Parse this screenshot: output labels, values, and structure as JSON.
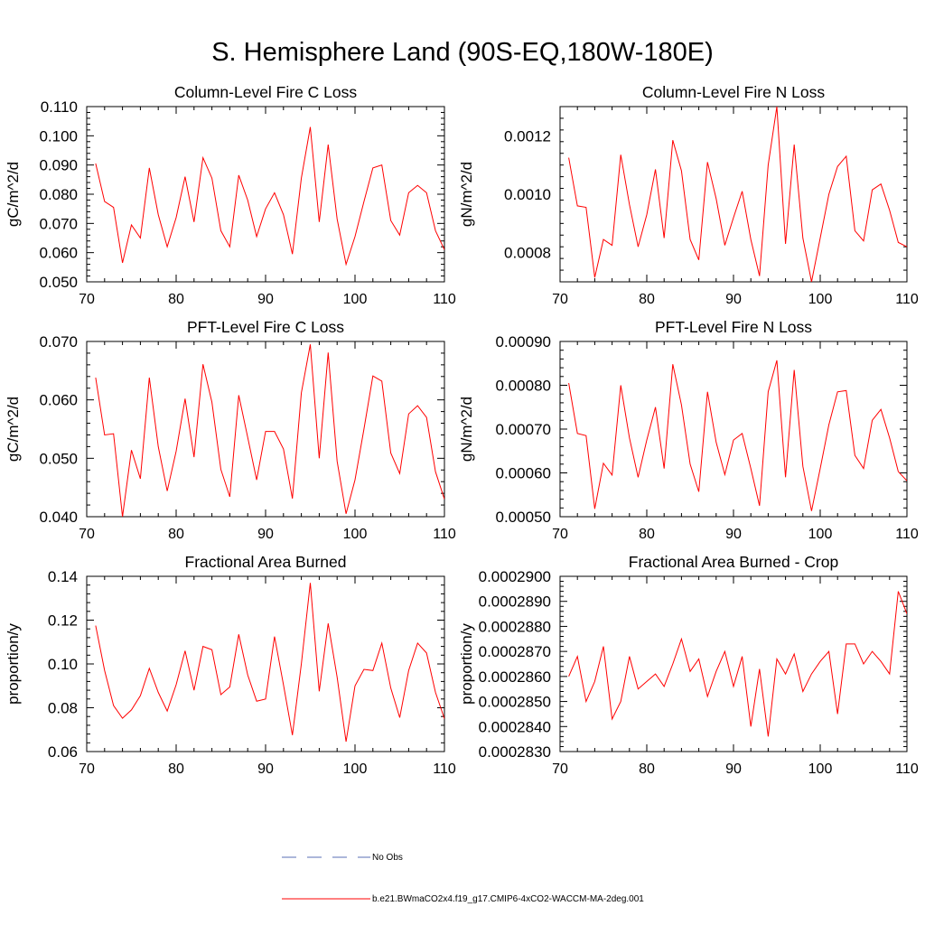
{
  "page_title": "S. Hemisphere Land (90S-EQ,180W-180E)",
  "legend": [
    {
      "label": "No Obs",
      "color": "#5a6fb5",
      "style": "dashed"
    },
    {
      "label": "b.e21.BWmaCO2x4.f19_g17.CMIP6-4xCO2-WACCM-MA-2deg.001",
      "color": "#ff0000",
      "style": "solid"
    }
  ],
  "chart_data": [
    {
      "type": "line",
      "title": "Column-Level Fire C Loss",
      "ylabel": "gC/m^2/d",
      "xlabel": "",
      "xlim": [
        70,
        110
      ],
      "ylim": [
        0.05,
        0.11
      ],
      "xticks": [
        70,
        80,
        90,
        100,
        110
      ],
      "xtick_labels": [
        "70",
        "80",
        "90",
        "100",
        "110"
      ],
      "yticks": [
        0.05,
        0.06,
        0.07,
        0.08,
        0.09,
        0.1,
        0.11
      ],
      "ytick_labels": [
        "0.050",
        "0.060",
        "0.070",
        "0.080",
        "0.090",
        "0.100",
        "0.110"
      ],
      "x_start": 71,
      "series": [
        {
          "name": "b.e21.BWmaCO2x4.f19_g17.CMIP6-4xCO2-WACCM-MA-2deg.001",
          "color": "#ff0000",
          "values": [
            0.0905,
            0.0775,
            0.0755,
            0.0565,
            0.0695,
            0.065,
            0.089,
            0.073,
            0.062,
            0.072,
            0.086,
            0.0705,
            0.0925,
            0.0855,
            0.0675,
            0.062,
            0.0865,
            0.078,
            0.0655,
            0.075,
            0.0805,
            0.073,
            0.0595,
            0.0855,
            0.103,
            0.0705,
            0.097,
            0.0715,
            0.056,
            0.0655,
            0.0775,
            0.089,
            0.09,
            0.071,
            0.066,
            0.0805,
            0.083,
            0.0805,
            0.0675,
            0.061
          ]
        }
      ]
    },
    {
      "type": "line",
      "title": "Column-Level Fire N Loss",
      "ylabel": "gN/m^2/d",
      "xlabel": "",
      "xlim": [
        70,
        110
      ],
      "ylim": [
        0.0007,
        0.0013
      ],
      "xticks": [
        70,
        80,
        90,
        100,
        110
      ],
      "xtick_labels": [
        "70",
        "80",
        "90",
        "100",
        "110"
      ],
      "yticks": [
        0.0008,
        0.001,
        0.0012
      ],
      "ytick_labels": [
        "0.0008",
        "0.0010",
        "0.0012"
      ],
      "x_start": 71,
      "series": [
        {
          "name": "b.e21.BWmaCO2x4.f19_g17.CMIP6-4xCO2-WACCM-MA-2deg.001",
          "color": "#ff0000",
          "values": [
            0.001125,
            0.00096,
            0.000955,
            0.000715,
            0.000845,
            0.000825,
            0.001135,
            0.000965,
            0.00082,
            0.00093,
            0.001085,
            0.00085,
            0.001185,
            0.00108,
            0.000845,
            0.000775,
            0.00111,
            0.000985,
            0.000825,
            0.00092,
            0.00101,
            0.000845,
            0.00072,
            0.0011,
            0.0013,
            0.00083,
            0.00117,
            0.00085,
            0.0007,
            0.00085,
            0.001,
            0.001095,
            0.00113,
            0.000875,
            0.00084,
            0.001015,
            0.001035,
            0.000945,
            0.000835,
            0.00082
          ]
        }
      ]
    },
    {
      "type": "line",
      "title": "PFT-Level Fire C Loss",
      "ylabel": "gC/m^2/d",
      "xlabel": "",
      "xlim": [
        70,
        110
      ],
      "ylim": [
        0.04,
        0.07
      ],
      "xticks": [
        70,
        80,
        90,
        100,
        110
      ],
      "xtick_labels": [
        "70",
        "80",
        "90",
        "100",
        "110"
      ],
      "yticks": [
        0.04,
        0.05,
        0.06,
        0.07
      ],
      "ytick_labels": [
        "0.040",
        "0.050",
        "0.060",
        "0.070"
      ],
      "x_start": 71,
      "series": [
        {
          "name": "b.e21.BWmaCO2x4.f19_g17.CMIP6-4xCO2-WACCM-MA-2deg.001",
          "color": "#ff0000",
          "values": [
            0.0638,
            0.054,
            0.0542,
            0.04,
            0.0514,
            0.0465,
            0.0638,
            0.052,
            0.0444,
            0.0512,
            0.0602,
            0.0502,
            0.0661,
            0.0596,
            0.0481,
            0.0434,
            0.0608,
            0.0536,
            0.0463,
            0.0546,
            0.0546,
            0.0516,
            0.0431,
            0.0612,
            0.0695,
            0.05,
            0.0681,
            0.0495,
            0.0405,
            0.0463,
            0.055,
            0.0641,
            0.0632,
            0.0509,
            0.0474,
            0.0576,
            0.059,
            0.057,
            0.0477,
            0.043
          ]
        }
      ]
    },
    {
      "type": "line",
      "title": "PFT-Level Fire N Loss",
      "ylabel": "gN/m^2/d",
      "xlabel": "",
      "xlim": [
        70,
        110
      ],
      "ylim": [
        0.0005,
        0.0009
      ],
      "xticks": [
        70,
        80,
        90,
        100,
        110
      ],
      "xtick_labels": [
        "70",
        "80",
        "90",
        "100",
        "110"
      ],
      "yticks": [
        0.0005,
        0.0006,
        0.0007,
        0.0008,
        0.0009
      ],
      "ytick_labels": [
        "0.00050",
        "0.00060",
        "0.00070",
        "0.00080",
        "0.00090"
      ],
      "x_start": 71,
      "series": [
        {
          "name": "b.e21.BWmaCO2x4.f19_g17.CMIP6-4xCO2-WACCM-MA-2deg.001",
          "color": "#ff0000",
          "values": [
            0.000805,
            0.00069,
            0.000685,
            0.000518,
            0.000622,
            0.000595,
            0.0008,
            0.00068,
            0.00059,
            0.000675,
            0.00075,
            0.00061,
            0.000848,
            0.000755,
            0.00062,
            0.000557,
            0.000785,
            0.00067,
            0.000596,
            0.000675,
            0.00069,
            0.00061,
            0.000525,
            0.000785,
            0.000857,
            0.00059,
            0.000835,
            0.000615,
            0.000513,
            0.00061,
            0.00071,
            0.000785,
            0.000788,
            0.00064,
            0.00061,
            0.00072,
            0.000745,
            0.00068,
            0.000603,
            0.000582
          ]
        }
      ]
    },
    {
      "type": "line",
      "title": "Fractional Area Burned",
      "ylabel": "proportion/y",
      "xlabel": "",
      "xlim": [
        70,
        110
      ],
      "ylim": [
        0.06,
        0.14
      ],
      "xticks": [
        70,
        80,
        90,
        100,
        110
      ],
      "xtick_labels": [
        "70",
        "80",
        "90",
        "100",
        "110"
      ],
      "yticks": [
        0.06,
        0.08,
        0.1,
        0.12,
        0.14
      ],
      "ytick_labels": [
        "0.06",
        "0.08",
        "0.10",
        "0.12",
        "0.14"
      ],
      "x_start": 71,
      "series": [
        {
          "name": "b.e21.BWmaCO2x4.f19_g17.CMIP6-4xCO2-WACCM-MA-2deg.001",
          "color": "#ff0000",
          "values": [
            0.1175,
            0.097,
            0.081,
            0.0752,
            0.079,
            0.0855,
            0.098,
            0.087,
            0.0785,
            0.0905,
            0.106,
            0.088,
            0.108,
            0.1065,
            0.086,
            0.0895,
            0.1135,
            0.095,
            0.083,
            0.084,
            0.1125,
            0.0905,
            0.0675,
            0.1,
            0.137,
            0.0875,
            0.1185,
            0.094,
            0.0645,
            0.09,
            0.0975,
            0.097,
            0.1095,
            0.089,
            0.0755,
            0.097,
            0.1095,
            0.105,
            0.087,
            0.075
          ]
        }
      ]
    },
    {
      "type": "line",
      "title": "Fractional Area Burned - Crop",
      "ylabel": "proportion/y",
      "xlabel": "",
      "xlim": [
        70,
        110
      ],
      "ylim": [
        0.000283,
        0.00029
      ],
      "xticks": [
        70,
        80,
        90,
        100,
        110
      ],
      "xtick_labels": [
        "70",
        "80",
        "90",
        "100",
        "110"
      ],
      "yticks": [
        0.000283,
        0.000284,
        0.000285,
        0.000286,
        0.000287,
        0.000288,
        0.000289,
        0.00029
      ],
      "ytick_labels": [
        "0.0002830",
        "0.0002840",
        "0.0002850",
        "0.0002860",
        "0.0002870",
        "0.0002880",
        "0.0002890",
        "0.0002900"
      ],
      "x_start": 71,
      "series": [
        {
          "name": "b.e21.BWmaCO2x4.f19_g17.CMIP6-4xCO2-WACCM-MA-2deg.001",
          "color": "#ff0000",
          "values": [
            0.000286,
            0.0002868,
            0.000285,
            0.0002858,
            0.0002872,
            0.0002843,
            0.000285,
            0.0002868,
            0.0002855,
            0.0002858,
            0.0002861,
            0.0002856,
            0.0002865,
            0.0002875,
            0.0002862,
            0.0002867,
            0.0002852,
            0.0002862,
            0.000287,
            0.0002856,
            0.0002868,
            0.000284,
            0.0002863,
            0.0002836,
            0.0002867,
            0.0002861,
            0.0002869,
            0.0002854,
            0.0002861,
            0.0002866,
            0.000287,
            0.0002845,
            0.0002873,
            0.0002873,
            0.0002865,
            0.000287,
            0.0002866,
            0.0002861,
            0.0002894,
            0.0002885
          ]
        }
      ]
    }
  ]
}
